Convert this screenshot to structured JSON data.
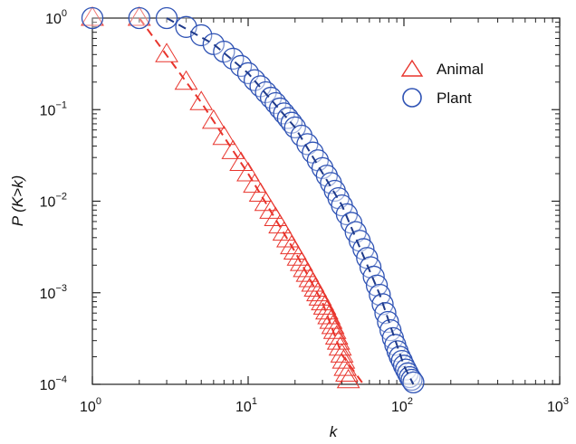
{
  "chart_data": {
    "type": "scatter",
    "title": "",
    "xlabel": "k",
    "ylabel": "P (K>k)",
    "xscale": "log",
    "yscale": "log",
    "xlim": [
      1,
      1000
    ],
    "ylim": [
      0.0001,
      1
    ],
    "x_ticks": [
      1,
      10,
      100,
      1000
    ],
    "y_ticks": [
      0.0001,
      0.001,
      0.01,
      0.1,
      1
    ],
    "x_tick_labels": [
      {
        "base": "10",
        "exp": "0"
      },
      {
        "base": "10",
        "exp": "1"
      },
      {
        "base": "10",
        "exp": "2"
      },
      {
        "base": "10",
        "exp": "3"
      }
    ],
    "y_tick_labels": [
      {
        "base": "10",
        "exp": "−4"
      },
      {
        "base": "10",
        "exp": "−3"
      },
      {
        "base": "10",
        "exp": "−2"
      },
      {
        "base": "10",
        "exp": "−1"
      },
      {
        "base": "10",
        "exp": "0"
      }
    ],
    "legend": {
      "position": "top-right"
    },
    "series": [
      {
        "name": "Animal",
        "marker": "triangle",
        "color": "#e8342c",
        "fit_color": "#e8342c",
        "points": [
          [
            1,
            1.0
          ],
          [
            2,
            1.0
          ],
          [
            3,
            0.4
          ],
          [
            4,
            0.2
          ],
          [
            5,
            0.12
          ],
          [
            6,
            0.075
          ],
          [
            7,
            0.05
          ],
          [
            8,
            0.035
          ],
          [
            9,
            0.026
          ],
          [
            10,
            0.02
          ],
          [
            11,
            0.015
          ],
          [
            12,
            0.012
          ],
          [
            13,
            0.0095
          ],
          [
            14,
            0.0078
          ],
          [
            15,
            0.0065
          ],
          [
            16,
            0.0054
          ],
          [
            17,
            0.0045
          ],
          [
            18,
            0.0038
          ],
          [
            19,
            0.0032
          ],
          [
            20,
            0.0028
          ],
          [
            21,
            0.0024
          ],
          [
            22,
            0.0021
          ],
          [
            23,
            0.0018
          ],
          [
            24,
            0.0016
          ],
          [
            25,
            0.0014
          ],
          [
            26,
            0.00125
          ],
          [
            27,
            0.0011
          ],
          [
            28,
            0.00098
          ],
          [
            29,
            0.00088
          ],
          [
            30,
            0.00078
          ],
          [
            31,
            0.0007
          ],
          [
            32,
            0.00062
          ],
          [
            33,
            0.00055
          ],
          [
            34,
            0.00049
          ],
          [
            35,
            0.00043
          ],
          [
            36,
            0.00038
          ],
          [
            37,
            0.00033
          ],
          [
            38,
            0.00029
          ],
          [
            39,
            0.00025
          ],
          [
            40,
            0.00021
          ],
          [
            41,
            0.00018
          ],
          [
            42,
            0.00015
          ],
          [
            43,
            0.00013
          ],
          [
            44,
            0.00011
          ]
        ],
        "fit": [
          [
            2,
            1.0
          ],
          [
            5,
            0.12
          ],
          [
            10,
            0.02
          ],
          [
            20,
            0.0028
          ],
          [
            30,
            0.00078
          ],
          [
            40,
            0.00021
          ],
          [
            55,
            0.0001
          ]
        ]
      },
      {
        "name": "Plant",
        "marker": "circle",
        "color": "#2e52b4",
        "fit_color": "#1f3a8a",
        "points": [
          [
            1,
            1.0
          ],
          [
            2,
            1.0
          ],
          [
            3,
            1.0
          ],
          [
            4,
            0.8
          ],
          [
            5,
            0.65
          ],
          [
            6,
            0.52
          ],
          [
            7,
            0.43
          ],
          [
            8,
            0.36
          ],
          [
            9,
            0.3
          ],
          [
            10,
            0.25
          ],
          [
            11,
            0.21
          ],
          [
            12,
            0.18
          ],
          [
            13,
            0.155
          ],
          [
            14,
            0.135
          ],
          [
            15,
            0.118
          ],
          [
            16,
            0.103
          ],
          [
            17,
            0.091
          ],
          [
            18,
            0.081
          ],
          [
            19,
            0.072
          ],
          [
            20,
            0.064
          ],
          [
            22,
            0.052
          ],
          [
            24,
            0.042
          ],
          [
            26,
            0.034
          ],
          [
            28,
            0.028
          ],
          [
            30,
            0.023
          ],
          [
            32,
            0.019
          ],
          [
            34,
            0.0158
          ],
          [
            36,
            0.013
          ],
          [
            38,
            0.0108
          ],
          [
            40,
            0.009
          ],
          [
            43,
            0.0072
          ],
          [
            46,
            0.0058
          ],
          [
            49,
            0.0046
          ],
          [
            52,
            0.0037
          ],
          [
            55,
            0.003
          ],
          [
            58,
            0.0024
          ],
          [
            61,
            0.0019
          ],
          [
            64,
            0.0015
          ],
          [
            67,
            0.0012
          ],
          [
            70,
            0.00095
          ],
          [
            73,
            0.00075
          ],
          [
            76,
            0.0006
          ],
          [
            79,
            0.00048
          ],
          [
            82,
            0.00039
          ],
          [
            85,
            0.00032
          ],
          [
            88,
            0.00027
          ],
          [
            91,
            0.00023
          ],
          [
            94,
            0.0002
          ],
          [
            97,
            0.00018
          ],
          [
            100,
            0.00016
          ],
          [
            103,
            0.000145
          ],
          [
            106,
            0.000132
          ],
          [
            109,
            0.00012
          ],
          [
            112,
            0.000112
          ],
          [
            115,
            0.000105
          ]
        ],
        "fit": [
          [
            3,
            1.0
          ],
          [
            6,
            0.52
          ],
          [
            10,
            0.25
          ],
          [
            20,
            0.064
          ],
          [
            40,
            0.009
          ],
          [
            70,
            0.00095
          ],
          [
            100,
            0.00016
          ],
          [
            115,
            0.0001
          ]
        ]
      }
    ]
  }
}
